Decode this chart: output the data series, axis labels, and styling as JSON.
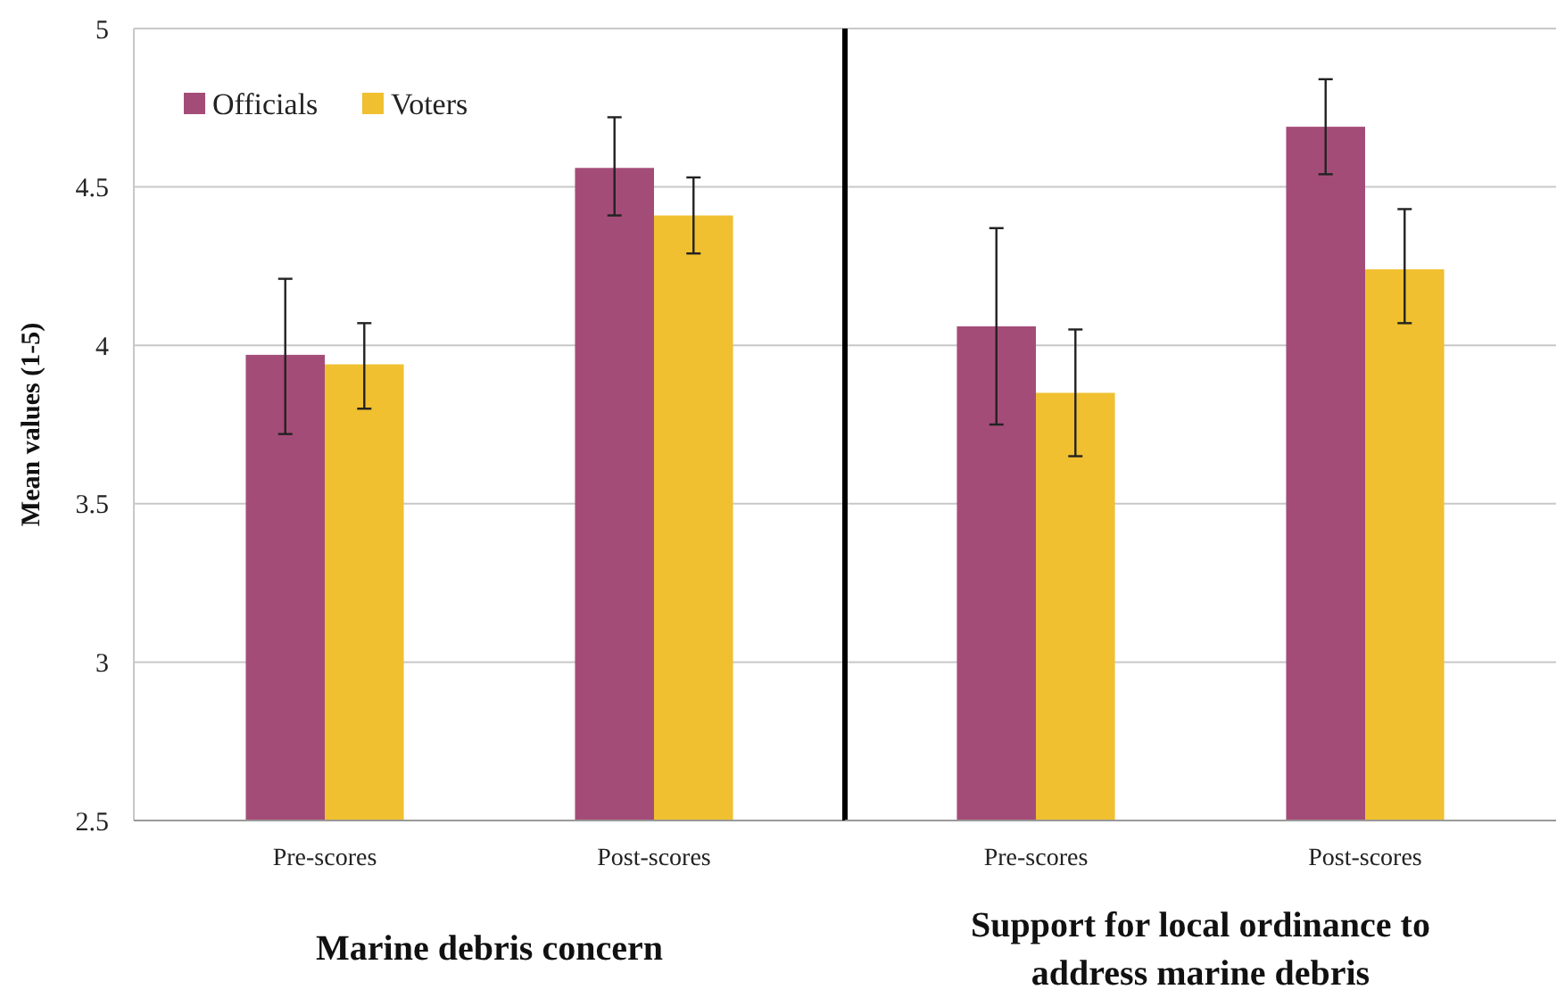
{
  "chart_data": [
    {
      "type": "bar",
      "ylabel": "Mean values (1-5)",
      "xlabel": "Marine debris concern",
      "categories": [
        "Pre-scores",
        "Post-scores"
      ],
      "series": [
        {
          "name": "Officials",
          "color": "#a44c78",
          "values": [
            3.97,
            4.56
          ],
          "errors": [
            [
              3.72,
              4.21
            ],
            [
              4.41,
              4.72
            ]
          ]
        },
        {
          "name": "Voters",
          "color": "#f0c030",
          "values": [
            3.94,
            4.41
          ],
          "errors": [
            [
              3.8,
              4.07
            ],
            [
              4.29,
              4.53
            ]
          ]
        }
      ],
      "ylim": [
        2.5,
        5
      ],
      "yticks": [
        2.5,
        3,
        3.5,
        4,
        4.5,
        5
      ],
      "grid": "y",
      "legend": "top left"
    },
    {
      "type": "bar",
      "xlabel": "Support for local ordinance to address marine debris",
      "categories": [
        "Pre-scores",
        "Post-scores"
      ],
      "series": [
        {
          "color": "#a44c78",
          "values": [
            4.06,
            4.69
          ],
          "errors": [
            [
              3.75,
              4.37
            ],
            [
              4.54,
              4.84
            ]
          ]
        },
        {
          "color": "#f0c030",
          "values": [
            3.85,
            4.24
          ],
          "errors": [
            [
              3.65,
              4.05
            ],
            [
              4.07,
              4.43
            ]
          ]
        }
      ],
      "ylim": [
        2.5,
        5
      ],
      "yticks": [
        2.5,
        3,
        3.5,
        4,
        4.5,
        5
      ],
      "grid": "y",
      "tick_labels": "x"
    }
  ]
}
